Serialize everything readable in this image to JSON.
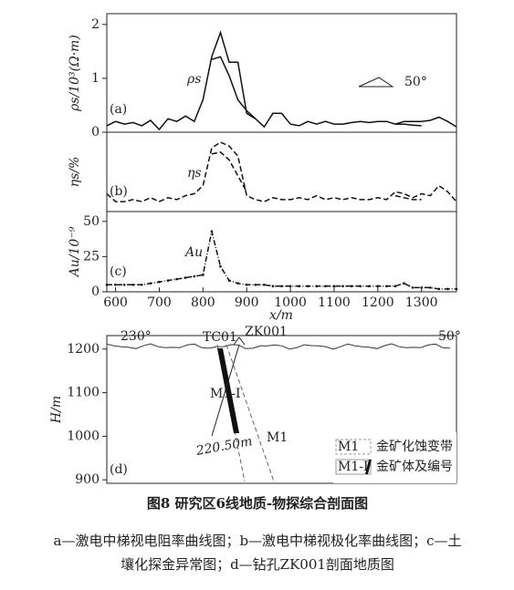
{
  "chart_data": [
    {
      "type": "line",
      "ylabel": "ρs/10³(Ω·m)",
      "annotations": [
        "ρs",
        "(a)",
        "50°"
      ],
      "x": [
        580,
        600,
        620,
        640,
        660,
        680,
        700,
        720,
        740,
        760,
        780,
        800,
        820,
        840,
        860,
        880,
        900,
        920,
        940,
        960,
        980,
        1000,
        1020,
        1040,
        1060,
        1080,
        1100,
        1120,
        1140,
        1160,
        1180,
        1200,
        1220,
        1240,
        1260,
        1280,
        1300,
        1320,
        1340,
        1360,
        1380
      ],
      "series": [
        {
          "color": "#111",
          "dash": "solid",
          "values": [
            0.12,
            0.2,
            0.15,
            0.18,
            0.12,
            0.22,
            0.05,
            0.25,
            0.2,
            0.3,
            0.2,
            0.6,
            1.4,
            1.85,
            1.3,
            1.3,
            0.35,
            0.25,
            0.1,
            0.35,
            0.35,
            0.15,
            0.12,
            0.2,
            0.15,
            0.2,
            0.15,
            0.15,
            0.18,
            0.2,
            0.18,
            0.2,
            0.2,
            0.15,
            0.2,
            0.2,
            0.2,
            0.22,
            0.28,
            0.2,
            0.1
          ]
        },
        {
          "color": "#111",
          "dash": "solid",
          "values": [
            null,
            null,
            null,
            null,
            null,
            null,
            null,
            null,
            null,
            null,
            null,
            null,
            1.35,
            1.4,
            1.05,
            0.6,
            0.4,
            0.25,
            null,
            null,
            null,
            null,
            null,
            null,
            null,
            null,
            null,
            null,
            null,
            null,
            null,
            null,
            null,
            0.15,
            0.15,
            0.13,
            0.12,
            null,
            null,
            null,
            null
          ]
        }
      ],
      "ylim": [
        0,
        2.2
      ],
      "yticks": [
        0,
        1,
        2
      ],
      "xlim": [
        580,
        1380
      ]
    },
    {
      "type": "line",
      "ylabel": "ηs/%",
      "annotations": [
        "ηs",
        "(b)"
      ],
      "x": [
        580,
        600,
        620,
        640,
        660,
        680,
        700,
        720,
        740,
        760,
        780,
        800,
        820,
        840,
        860,
        880,
        900,
        920,
        940,
        960,
        980,
        1000,
        1020,
        1040,
        1060,
        1080,
        1100,
        1120,
        1140,
        1160,
        1180,
        1200,
        1220,
        1240,
        1260,
        1280,
        1300,
        1320,
        1340,
        1360,
        1380
      ],
      "series": [
        {
          "color": "#111",
          "dash": "dashed",
          "values": [
            0.9,
            0.5,
            0.5,
            0.6,
            0.5,
            0.7,
            0.5,
            0.7,
            0.6,
            0.8,
            0.9,
            1.3,
            3.2,
            3.5,
            3.3,
            2.8,
            0.8,
            0.6,
            0.5,
            0.7,
            0.6,
            0.6,
            0.7,
            0.6,
            0.8,
            0.6,
            0.7,
            0.6,
            0.7,
            0.6,
            0.6,
            0.7,
            0.6,
            1.0,
            0.9,
            0.7,
            0.9,
            0.8,
            1.3,
            1.0,
            0.5
          ]
        },
        {
          "color": "#111",
          "dash": "dashed",
          "values": [
            null,
            null,
            null,
            null,
            null,
            null,
            null,
            null,
            null,
            null,
            null,
            null,
            2.9,
            3.0,
            2.6,
            1.8,
            1.0,
            null,
            null,
            null,
            null,
            null,
            null,
            null,
            null,
            null,
            null,
            null,
            null,
            null,
            null,
            null,
            null,
            0.8,
            0.7,
            0.6,
            0.6,
            null,
            null,
            null,
            null
          ]
        }
      ],
      "ylim": [
        0,
        4
      ],
      "xlim": [
        580,
        1380
      ]
    },
    {
      "type": "line",
      "ylabel": "Au/10⁻⁹",
      "annotations": [
        "Au",
        "(c)"
      ],
      "xlabel": "x/m",
      "x": [
        580,
        600,
        620,
        640,
        660,
        680,
        700,
        720,
        740,
        760,
        780,
        800,
        820,
        840,
        860,
        880,
        900,
        920,
        940,
        960,
        980,
        1000,
        1020,
        1040,
        1060,
        1080,
        1100,
        1120,
        1140,
        1160,
        1180,
        1200,
        1220,
        1240,
        1260,
        1280,
        1300,
        1320,
        1340,
        1360,
        1380
      ],
      "series": [
        {
          "color": "#111",
          "dash": "dashdot",
          "values": [
            5,
            5,
            5,
            5,
            5,
            6,
            7,
            8,
            9,
            10,
            11,
            12,
            43,
            18,
            8,
            6,
            5,
            5,
            5,
            4,
            4,
            4,
            4,
            4,
            4,
            4,
            4,
            4,
            4,
            4,
            4,
            4,
            4,
            4,
            6,
            3,
            3,
            3,
            2,
            2,
            2
          ]
        }
      ],
      "ylim": [
        0,
        57
      ],
      "yticks": [
        0,
        25,
        50
      ],
      "xlim": [
        580,
        1380
      ],
      "xticks": [
        600,
        700,
        800,
        900,
        1000,
        1100,
        1200,
        1300
      ]
    },
    {
      "type": "section",
      "ylabel": "H/m",
      "ylim": [
        892,
        1231
      ],
      "yticks": [
        900,
        1000,
        1100,
        1200
      ],
      "annotations": [
        "230°",
        "50°",
        "TC01",
        "ZK001",
        "M1-I",
        "220.50m",
        "M1",
        "(d)"
      ],
      "legend": [
        {
          "symbol": "M1",
          "label": "金矿化蚀变带"
        },
        {
          "symbol": "M1-I",
          "label": "金矿体及编号"
        }
      ]
    }
  ],
  "caption": {
    "title": "图8   研究区6线地质-物探综合剖面图",
    "lines": [
      "a—激电中梯视电阻率曲线图；b—激电中梯视极化率曲线图；c—土",
      "壤化探金异常图；d—钻孔ZK001剖面地质图"
    ]
  }
}
